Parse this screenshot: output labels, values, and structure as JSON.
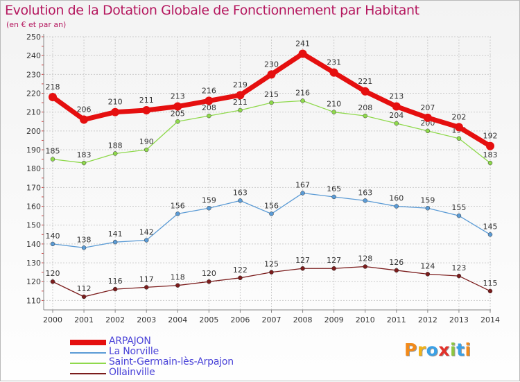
{
  "title": "Evolution de la Dotation Globale de Fonctionnement par Habitant",
  "subtitle": "(en € et par an)",
  "logo_text": "Proxiti",
  "colors": {
    "title": "#b5185f",
    "legend_text": "#4a43d8",
    "grid": "#cccccc",
    "axis": "#888888"
  },
  "chart_data": {
    "type": "line",
    "title": "Evolution de la Dotation Globale de Fonctionnement par Habitant",
    "subtitle": "(en € et par an)",
    "xlabel": "",
    "ylabel": "",
    "x": [
      "2000",
      "2001",
      "2002",
      "2003",
      "2004",
      "2005",
      "2006",
      "2007",
      "2008",
      "2009",
      "2010",
      "2011",
      "2012",
      "2013",
      "2014"
    ],
    "ylim": [
      105,
      250
    ],
    "yticks": [
      110,
      120,
      130,
      140,
      150,
      160,
      170,
      180,
      190,
      200,
      210,
      220,
      230,
      240,
      250
    ],
    "grid": true,
    "legend_position": "bottom-left",
    "series": [
      {
        "name": "ARPAJON",
        "color": "#e50f0f",
        "emphasis": true,
        "values": [
          218,
          206,
          210,
          211,
          213,
          216,
          219,
          230,
          241,
          231,
          221,
          213,
          207,
          202,
          192
        ]
      },
      {
        "name": "La Norville",
        "color": "#5b9bd5",
        "emphasis": false,
        "values": [
          140,
          138,
          141,
          142,
          156,
          159,
          163,
          156,
          167,
          165,
          163,
          160,
          159,
          155,
          145
        ]
      },
      {
        "name": "Saint-Germain-lès-Arpajon",
        "color": "#8fd94c",
        "emphasis": false,
        "values": [
          185,
          183,
          188,
          190,
          205,
          208,
          211,
          215,
          216,
          210,
          208,
          204,
          200,
          196,
          183
        ]
      },
      {
        "name": "Ollainville",
        "color": "#7b1c1c",
        "emphasis": false,
        "values": [
          120,
          112,
          116,
          117,
          118,
          120,
          122,
          125,
          127,
          127,
          128,
          126,
          124,
          123,
          115
        ]
      }
    ]
  }
}
